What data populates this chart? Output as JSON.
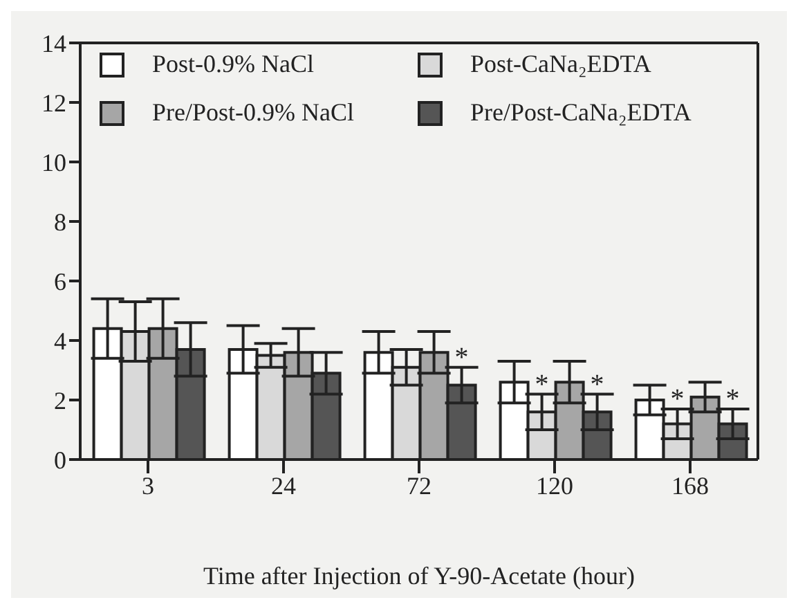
{
  "chart_data": {
    "type": "bar",
    "xlabel": "Time after Injection of Y-90-Acetate (hour)",
    "categories": [
      "3",
      "24",
      "72",
      "120",
      "168"
    ],
    "series": [
      {
        "name": "Post-0.9% NaCl",
        "color": "#ffffff",
        "values": [
          4.4,
          3.7,
          3.6,
          2.6,
          2.0
        ],
        "errors": [
          1.0,
          0.8,
          0.7,
          0.7,
          0.5
        ]
      },
      {
        "name": "Post-CaNa₂EDTA",
        "color": "#d9d9d9",
        "values": [
          4.3,
          3.5,
          3.1,
          1.6,
          1.2
        ],
        "errors": [
          1.0,
          0.4,
          0.6,
          0.6,
          0.5
        ]
      },
      {
        "name": "Pre/Post-0.9% NaCl",
        "color": "#a6a6a6",
        "values": [
          4.4,
          3.6,
          3.6,
          2.6,
          2.1
        ],
        "errors": [
          1.0,
          0.8,
          0.7,
          0.7,
          0.5
        ]
      },
      {
        "name": "Pre/Post-CaNa₂EDTA",
        "color": "#555555",
        "values": [
          3.7,
          2.9,
          2.5,
          1.6,
          1.2
        ],
        "errors": [
          0.9,
          0.7,
          0.6,
          0.6,
          0.5
        ]
      }
    ],
    "ylim": [
      0,
      14
    ],
    "yticks": [
      0,
      2,
      4,
      6,
      8,
      10,
      12,
      14
    ],
    "grid": false,
    "legend": "top",
    "annotations": [
      {
        "text": "*",
        "x": "72",
        "y": 3.6
      },
      {
        "text": "*",
        "x": "120",
        "y": 2.7
      },
      {
        "text": "*",
        "x": "120",
        "y": 2.7
      },
      {
        "text": "*",
        "x": "168",
        "y": 2.2
      },
      {
        "text": "*",
        "x": "168",
        "y": 2.2
      }
    ]
  }
}
